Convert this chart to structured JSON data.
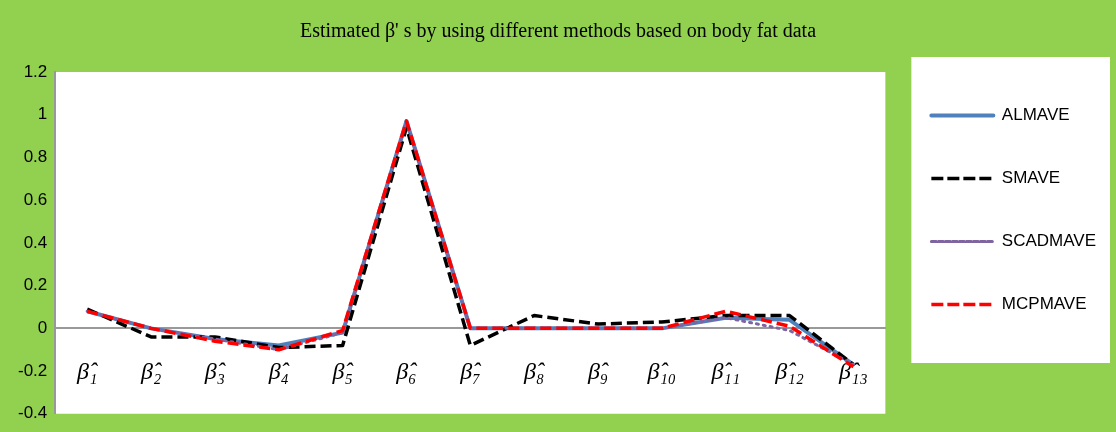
{
  "chart_data": {
    "type": "line",
    "title": "Estimated β' s by using different methods based on body fat data",
    "categories": [
      "β̂₁",
      "β̂₂",
      "β̂₃",
      "β̂₄",
      "β̂₅",
      "β̂₆",
      "β̂₇",
      "β̂₈",
      "β̂₉",
      "β̂₁₀",
      "β̂₁₁",
      "β̂₁₂",
      "β̂₁₃"
    ],
    "series": [
      {
        "name": "ALMAVE",
        "color": "#4f81bd",
        "line_style": "solid",
        "values": [
          0.08,
          0,
          -0.05,
          -0.08,
          -0.02,
          0.97,
          0,
          0,
          0,
          0,
          0.05,
          0.04,
          -0.17
        ]
      },
      {
        "name": "SMAVE",
        "color": "#000000",
        "line_style": "dashed",
        "values": [
          0.09,
          -0.04,
          -0.04,
          -0.09,
          -0.08,
          0.94,
          -0.08,
          0.06,
          0.02,
          0.03,
          0.06,
          0.06,
          -0.17
        ]
      },
      {
        "name": "SCADMAVE",
        "color": "#8064a2",
        "line_style": "dotted",
        "values": [
          0.08,
          0,
          -0.05,
          -0.1,
          -0.02,
          0.97,
          0,
          0,
          0,
          0,
          0.05,
          -0.01,
          -0.17
        ]
      },
      {
        "name": "MCPMAVE",
        "color": "#ff0000",
        "line_style": "dashed",
        "values": [
          0.08,
          0,
          -0.06,
          -0.1,
          -0.01,
          0.97,
          0,
          0,
          0,
          0,
          0.08,
          0.01,
          -0.18
        ]
      }
    ],
    "ylim": [
      -0.4,
      1.2
    ],
    "yticks": [
      -0.4,
      -0.2,
      0,
      0.2,
      0.4,
      0.6,
      0.8,
      1,
      1.2
    ],
    "grid": false,
    "legend": "right"
  }
}
